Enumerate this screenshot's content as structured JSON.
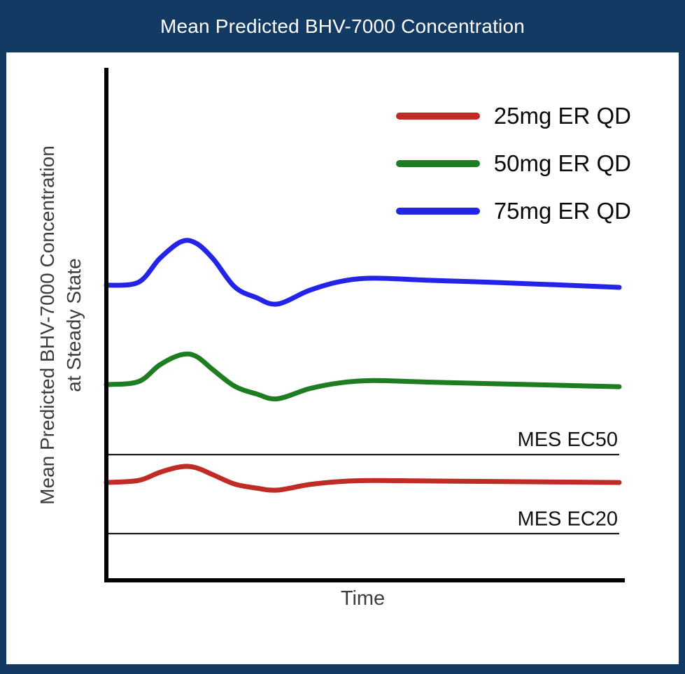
{
  "header": {
    "title": "Mean Predicted BHV-7000 Concentration"
  },
  "chart_data": {
    "type": "line",
    "title": "Mean Predicted BHV-7000 Concentration",
    "xlabel": "Time",
    "ylabel": "Mean Predicted BHV-7000 Concentration\nat Steady State",
    "axis_ticks": "none",
    "x_range": [
      0,
      24
    ],
    "y_range": [
      0,
      1
    ],
    "legend_position": "top-right",
    "x": [
      0,
      1.5,
      2.5,
      3.5,
      4.2,
      5,
      6,
      7,
      8,
      9.5,
      11,
      12.5,
      15,
      18,
      21,
      24
    ],
    "series": [
      {
        "name": "25mg ER QD",
        "color": "#BF2B25",
        "values": [
          0.193,
          0.197,
          0.213,
          0.224,
          0.222,
          0.208,
          0.19,
          0.182,
          0.178,
          0.189,
          0.195,
          0.197,
          0.196,
          0.195,
          0.194,
          0.193
        ]
      },
      {
        "name": "50mg ER QD",
        "color": "#1E7D20",
        "values": [
          0.386,
          0.392,
          0.425,
          0.445,
          0.442,
          0.415,
          0.383,
          0.368,
          0.358,
          0.378,
          0.39,
          0.394,
          0.391,
          0.388,
          0.385,
          0.382
        ]
      },
      {
        "name": "75mg ER QD",
        "color": "#2424E8",
        "values": [
          0.582,
          0.588,
          0.635,
          0.668,
          0.665,
          0.634,
          0.579,
          0.558,
          0.545,
          0.572,
          0.59,
          0.596,
          0.592,
          0.588,
          0.583,
          0.578
        ]
      }
    ],
    "reference_lines": [
      {
        "label": "MES EC50",
        "value": 0.248,
        "color": "#000000"
      },
      {
        "label": "MES EC20",
        "value": 0.092,
        "color": "#000000"
      }
    ]
  },
  "colors": {
    "frame": "#123A63",
    "title_text": "#FFFFFF",
    "axis": "#000000",
    "label_text": "#3D3D3D"
  }
}
